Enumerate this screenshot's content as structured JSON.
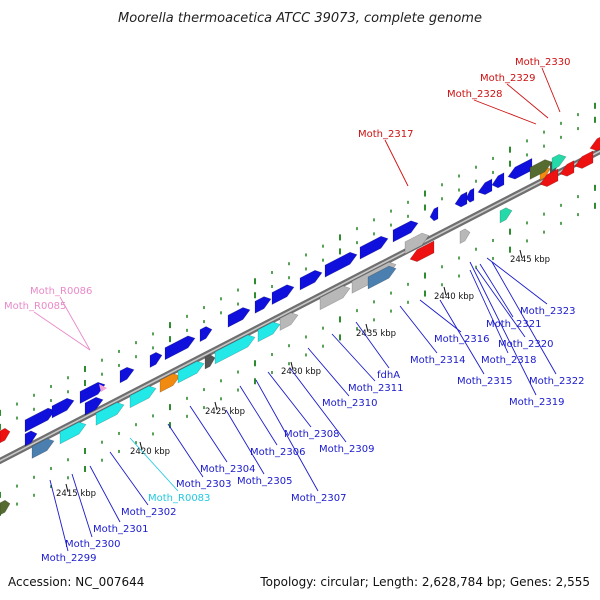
{
  "title": "Moorella thermoacetica ATCC 39073, complete genome",
  "footer": {
    "accession": "Accession: NC_007644",
    "topology": "Topology: circular; Length: 2,628,784 bp; Genes: 2,555"
  },
  "colors": {
    "backbone": "#8a8a8a",
    "dots": "#2e8b2e",
    "gene_blue": "#1010dd",
    "gene_cyan": "#22e8e8",
    "gene_red": "#ee1111",
    "rna_pink": "#f3a0d8",
    "label_blue": "#1a1acc",
    "label_red": "#cc1111",
    "label_pink": "#e98ac9",
    "label_cyan": "#22c9e0"
  },
  "ticks": [
    "2415 kbp",
    "2420 kbp",
    "2425 kbp",
    "2430 kbp",
    "2435 kbp",
    "2440 kbp",
    "2445 kbp"
  ],
  "labels": [
    {
      "text": "Moth_2330",
      "color": "red"
    },
    {
      "text": "Moth_2329",
      "color": "red"
    },
    {
      "text": "Moth_2328",
      "color": "red"
    },
    {
      "text": "Moth_2317",
      "color": "red"
    },
    {
      "text": "Moth_R0086",
      "color": "pink"
    },
    {
      "text": "Moth_R0085",
      "color": "pink"
    },
    {
      "text": "Moth_2323",
      "color": "blue"
    },
    {
      "text": "Moth_2316",
      "color": "blue"
    },
    {
      "text": "Moth_2321",
      "color": "blue"
    },
    {
      "text": "Moth_2320",
      "color": "blue"
    },
    {
      "text": "Moth_2314",
      "color": "blue"
    },
    {
      "text": "Moth_2318",
      "color": "blue"
    },
    {
      "text": "Moth_2322",
      "color": "blue"
    },
    {
      "text": "fdhA",
      "color": "blue"
    },
    {
      "text": "Moth_2315",
      "color": "blue"
    },
    {
      "text": "Moth_2311",
      "color": "blue"
    },
    {
      "text": "Moth_2319",
      "color": "blue"
    },
    {
      "text": "Moth_2310",
      "color": "blue"
    },
    {
      "text": "Moth_2308",
      "color": "blue"
    },
    {
      "text": "Moth_2309",
      "color": "blue"
    },
    {
      "text": "Moth_2306",
      "color": "blue"
    },
    {
      "text": "Moth_2304",
      "color": "blue"
    },
    {
      "text": "Moth_2303",
      "color": "blue"
    },
    {
      "text": "Moth_2305",
      "color": "blue"
    },
    {
      "text": "Moth_2307",
      "color": "blue"
    },
    {
      "text": "Moth_R0083",
      "color": "cyan"
    },
    {
      "text": "Moth_2302",
      "color": "blue"
    },
    {
      "text": "Moth_2301",
      "color": "blue"
    },
    {
      "text": "Moth_2300",
      "color": "blue"
    },
    {
      "text": "Moth_2299",
      "color": "blue"
    }
  ]
}
